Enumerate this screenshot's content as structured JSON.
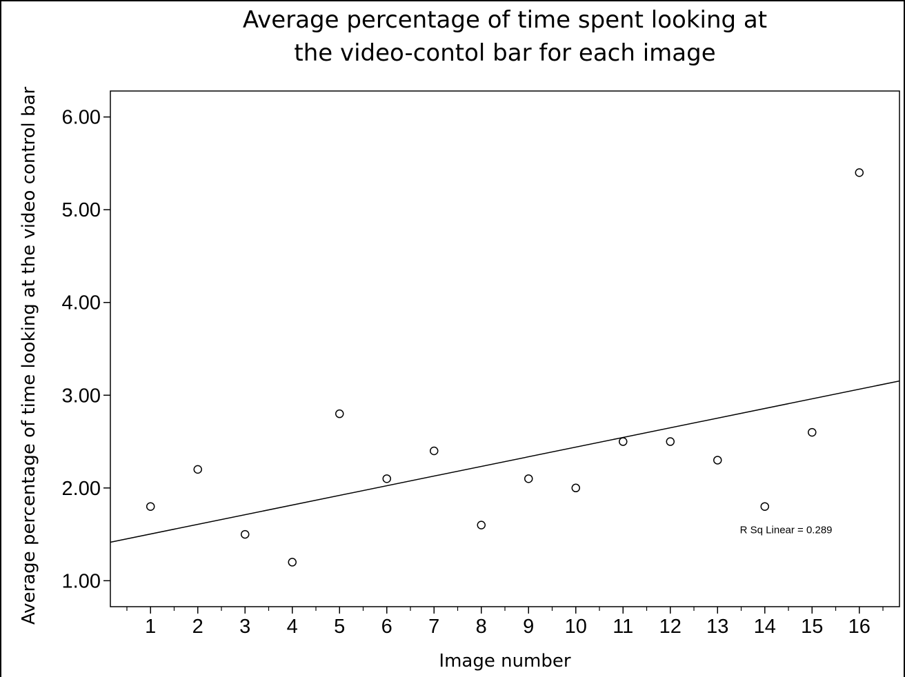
{
  "chart_data": {
    "type": "scatter",
    "title_lines": [
      "Average percentage of time spent looking at",
      "the video-contol bar for each image"
    ],
    "xlabel": "Image number",
    "ylabel": "Average percentage of time looking at the video control bar",
    "xlim": [
      0.15,
      16.85
    ],
    "ylim": [
      0.72,
      6.28
    ],
    "x_ticks": [
      1,
      2,
      3,
      4,
      5,
      6,
      7,
      8,
      9,
      10,
      11,
      12,
      13,
      14,
      15,
      16
    ],
    "x_minor_ticks": true,
    "y_ticks": [
      {
        "value": 1,
        "label": "1.00"
      },
      {
        "value": 2,
        "label": "2.00"
      },
      {
        "value": 3,
        "label": "3.00"
      },
      {
        "value": 4,
        "label": "4.00"
      },
      {
        "value": 5,
        "label": "5.00"
      },
      {
        "value": 6,
        "label": "6.00"
      }
    ],
    "points": [
      {
        "x": 1,
        "y": 1.8
      },
      {
        "x": 2,
        "y": 2.2
      },
      {
        "x": 3,
        "y": 1.5
      },
      {
        "x": 4,
        "y": 1.2
      },
      {
        "x": 5,
        "y": 2.8
      },
      {
        "x": 6,
        "y": 2.1
      },
      {
        "x": 7,
        "y": 2.4
      },
      {
        "x": 8,
        "y": 1.6
      },
      {
        "x": 9,
        "y": 2.1
      },
      {
        "x": 10,
        "y": 2.0
      },
      {
        "x": 11,
        "y": 2.5
      },
      {
        "x": 12,
        "y": 2.5
      },
      {
        "x": 13,
        "y": 2.3
      },
      {
        "x": 14,
        "y": 1.8
      },
      {
        "x": 15,
        "y": 2.6
      },
      {
        "x": 16,
        "y": 5.4
      }
    ],
    "fit_line": {
      "type": "linear",
      "intercept": 1.3995,
      "slope": 0.1041
    },
    "annotation": {
      "text": "R Sq Linear = 0.289",
      "x": 14.45,
      "y": 1.55
    },
    "grid": false,
    "legend": "none"
  }
}
